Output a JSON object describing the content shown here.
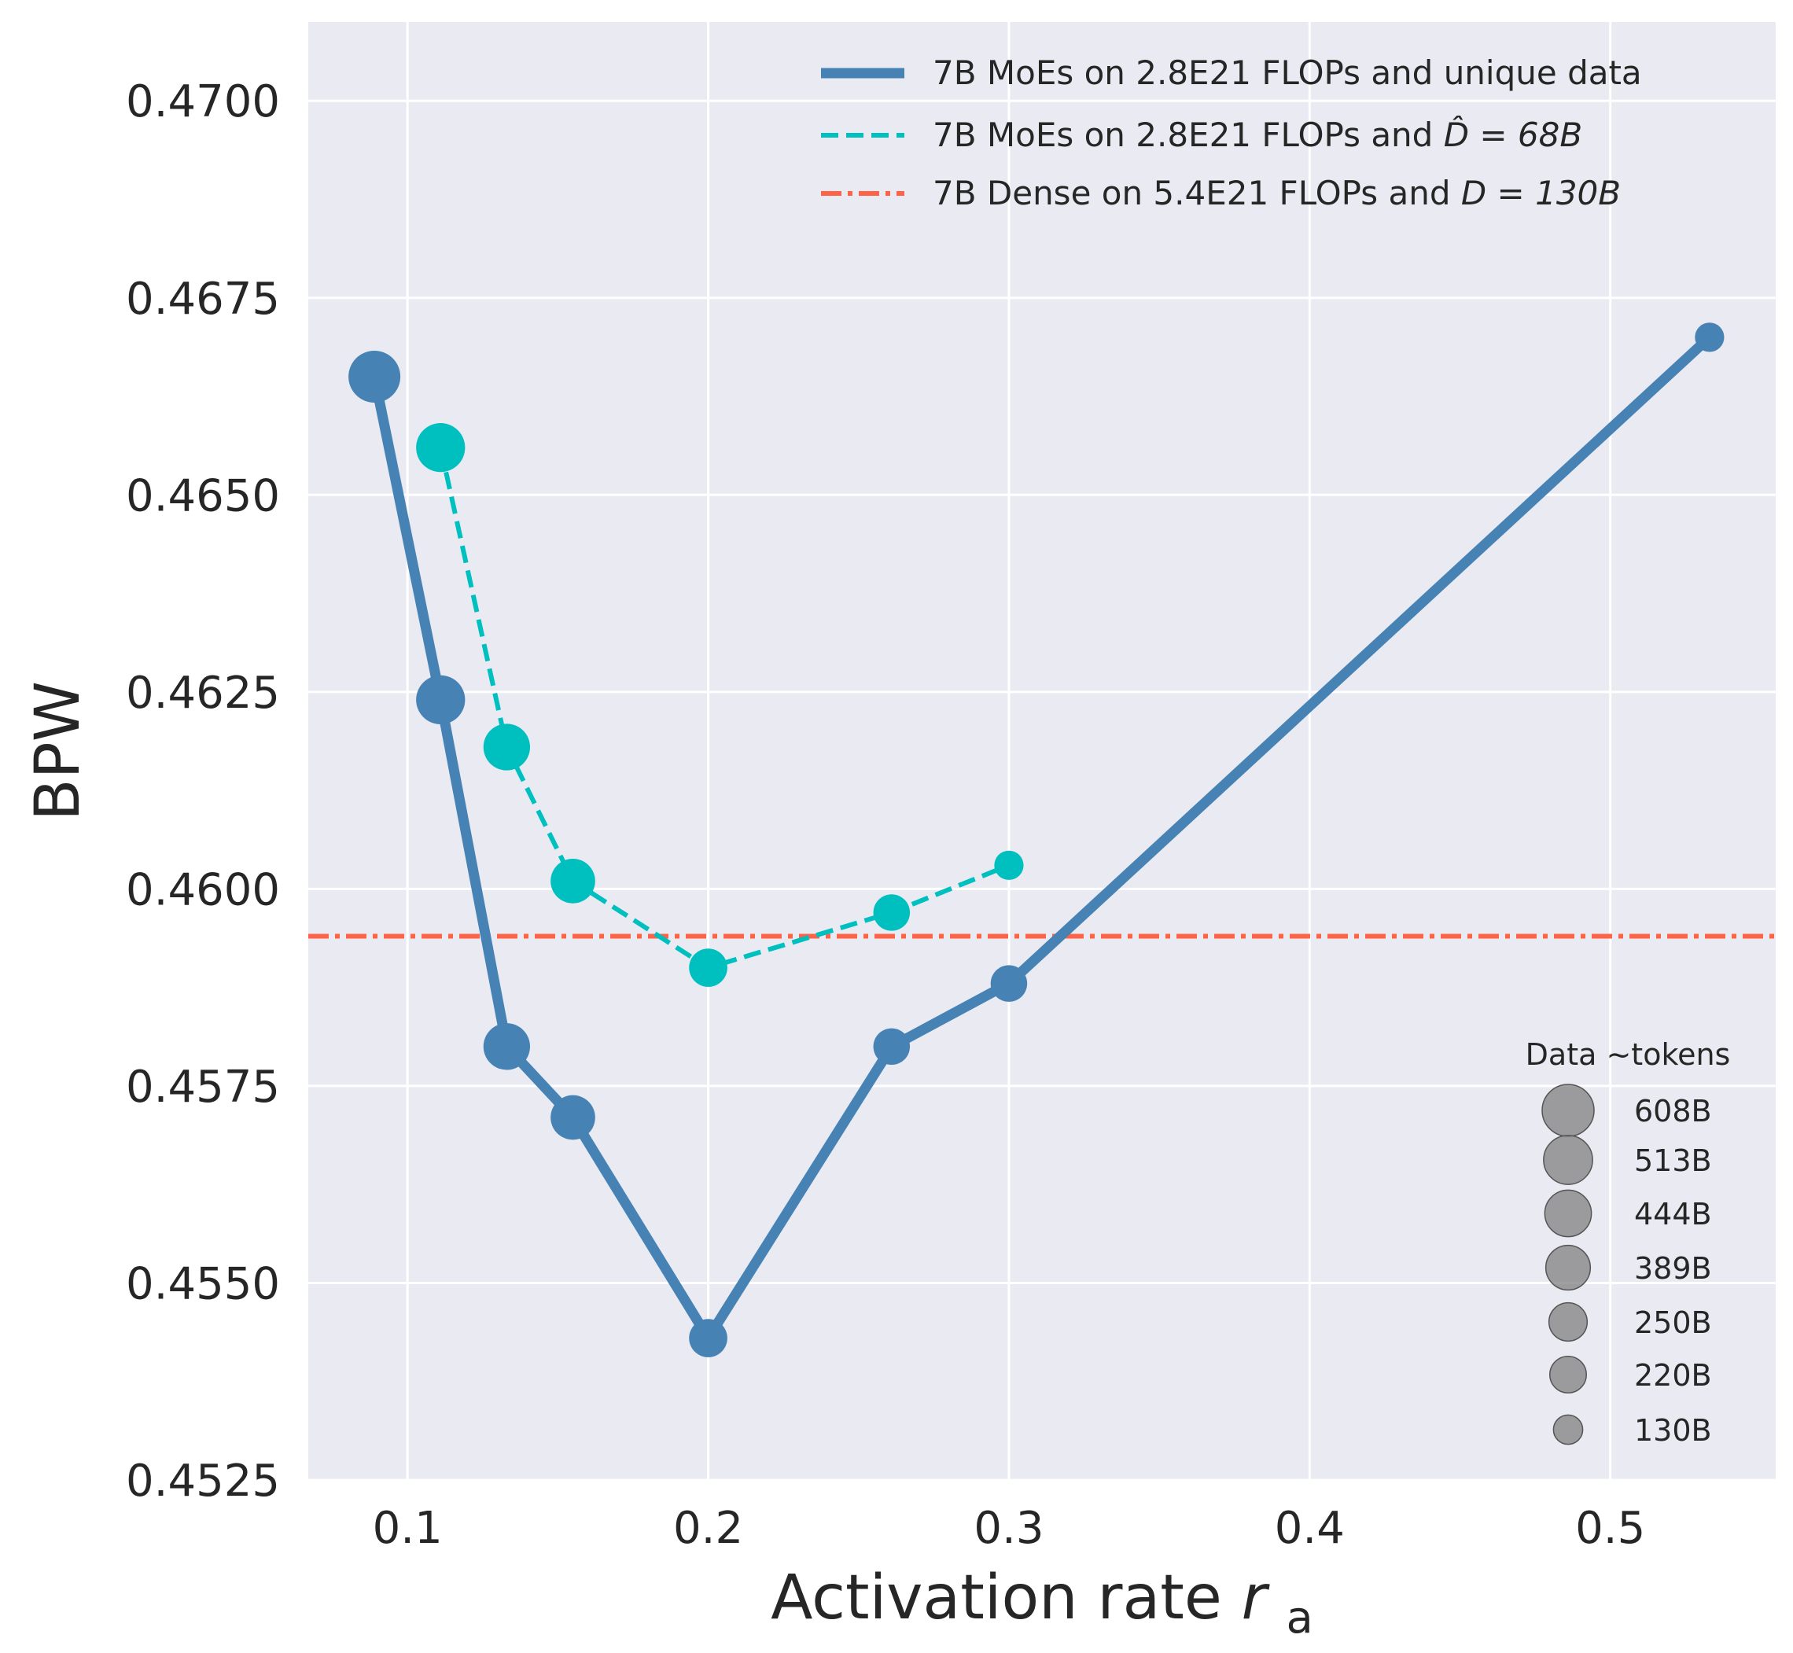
{
  "chart_data": {
    "type": "line",
    "title": "",
    "xlabel": "Activation rate",
    "xlabel_symbol": "r",
    "xlabel_subscript": "a",
    "ylabel": "BPW",
    "xlim": [
      0.067,
      0.555
    ],
    "ylim": [
      0.4525,
      0.471
    ],
    "xticks": [
      0.1,
      0.2,
      0.3,
      0.4,
      0.5
    ],
    "xtick_labels": [
      "0.1",
      "0.2",
      "0.3",
      "0.4",
      "0.5"
    ],
    "yticks": [
      0.4525,
      0.455,
      0.4575,
      0.46,
      0.4625,
      0.465,
      0.4675,
      0.47
    ],
    "ytick_labels": [
      "0.4525",
      "0.4550",
      "0.4575",
      "0.4600",
      "0.4625",
      "0.4650",
      "0.4675",
      "0.4700"
    ],
    "grid": true,
    "legend_position": "top-right",
    "series": [
      {
        "name": "7B MoEs on 2.8E21 FLOPs and unique data",
        "legend_label": "7B MoEs on 2.8E21 FLOPs and unique data",
        "color": "#4682B4",
        "style": "solid",
        "x": [
          0.089,
          0.111,
          0.133,
          0.155,
          0.2,
          0.261,
          0.3,
          0.533
        ],
        "y": [
          0.4665,
          0.4624,
          0.458,
          0.4571,
          0.4543,
          0.458,
          0.4588,
          0.467
        ],
        "tokens_B": [
          608,
          513,
          444,
          389,
          250,
          220,
          220,
          130
        ]
      },
      {
        "name": "7B MoEs on 2.8E21 FLOPs and D-hat = 68B",
        "legend_prefix": "7B MoEs on 2.8E21 FLOPs and ",
        "legend_math": "D̂ = 68B",
        "color": "#00BFBF",
        "style": "dashed",
        "x": [
          0.111,
          0.133,
          0.155,
          0.2,
          0.261,
          0.3
        ],
        "y": [
          0.4656,
          0.4618,
          0.4601,
          0.459,
          0.4597,
          0.4603
        ],
        "tokens_B": [
          513,
          444,
          389,
          250,
          220,
          130
        ]
      },
      {
        "name": "7B Dense on 5.4E21 FLOPs and D = 130B",
        "legend_prefix": "7B Dense on 5.4E21 FLOPs and ",
        "legend_math": "D = 130B",
        "color": "#FF6347",
        "style": "dashdot",
        "type": "hline",
        "y": 0.4594
      }
    ],
    "size_legend": {
      "title": "Data ~tokens",
      "entries": [
        "608B",
        "513B",
        "444B",
        "389B",
        "250B",
        "220B",
        "130B"
      ],
      "tokens_B": [
        608,
        513,
        444,
        389,
        250,
        220,
        130
      ]
    }
  }
}
